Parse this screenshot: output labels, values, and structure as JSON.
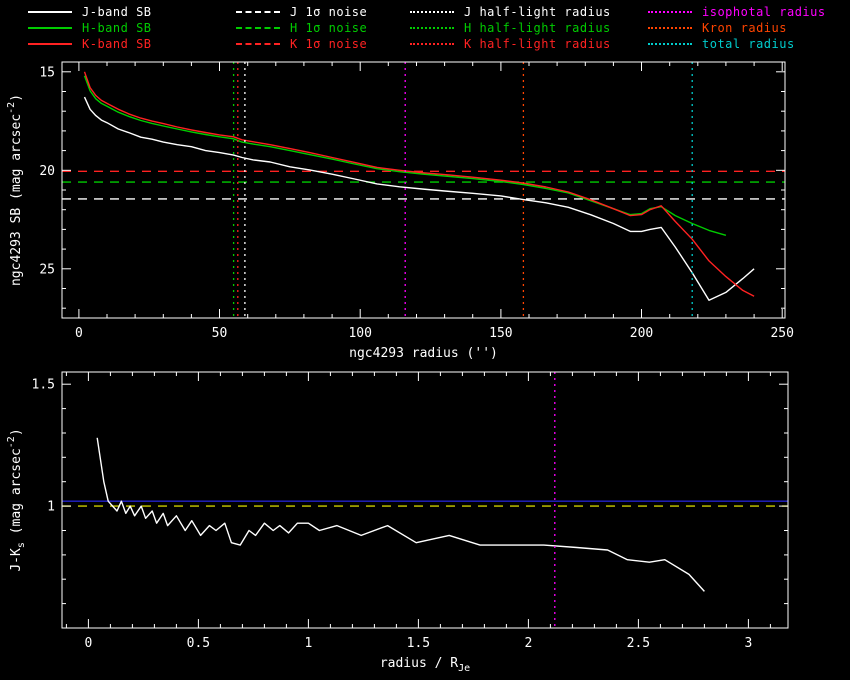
{
  "figure": {
    "background": "#000000",
    "foreground": "#ffffff",
    "galaxy": "ngc4293"
  },
  "legend": {
    "columns": [
      {
        "entries": [
          {
            "label": "J-band SB",
            "color": "#ffffff",
            "style": "solid"
          },
          {
            "label": "H-band SB",
            "color": "#00cc00",
            "style": "solid"
          },
          {
            "label": "K-band SB",
            "color": "#ff2222",
            "style": "solid"
          }
        ]
      },
      {
        "entries": [
          {
            "label": "J 1σ noise",
            "color": "#ffffff",
            "style": "dashed"
          },
          {
            "label": "H 1σ noise",
            "color": "#00cc00",
            "style": "dashed"
          },
          {
            "label": "K 1σ noise",
            "color": "#ff2222",
            "style": "dashed"
          }
        ]
      },
      {
        "entries": [
          {
            "label": "J half-light radius",
            "color": "#ffffff",
            "style": "dotted"
          },
          {
            "label": "H half-light radius",
            "color": "#00cc00",
            "style": "dotted"
          },
          {
            "label": "K half-light radius",
            "color": "#ff2222",
            "style": "dotted"
          }
        ]
      },
      {
        "entries": [
          {
            "label": "isophotal radius",
            "color": "#ff00ff",
            "style": "dotted"
          },
          {
            "label": "Kron radius",
            "color": "#ff4400",
            "style": "dotted"
          },
          {
            "label": "total radius",
            "color": "#00cccc",
            "style": "dotted"
          }
        ]
      }
    ]
  },
  "chart_data": [
    {
      "type": "line",
      "panel": "surface-brightness-profile",
      "xlabel": [
        {
          "t": "ngc4293 radius ('')"
        }
      ],
      "ylabel": [
        {
          "t": "ngc4293 SB (mag arcsec"
        },
        {
          "t": "-2",
          "pos": "sup"
        },
        {
          "t": ")"
        }
      ],
      "xlim": [
        -6,
        251
      ],
      "ylim": [
        14.5,
        27.5
      ],
      "xticks": [
        0,
        50,
        100,
        150,
        200,
        250
      ],
      "xtick_labels": [
        "0",
        "50",
        "100",
        "150",
        "200",
        "250"
      ],
      "xminor": 10,
      "yticks": [
        15,
        20,
        25
      ],
      "ytick_labels": [
        "15",
        "20",
        "25"
      ],
      "yminor": 1,
      "series": [
        {
          "name": "J-band SB",
          "color": "#ffffff",
          "style": "solid",
          "x": [
            2,
            4,
            6,
            8,
            10,
            14,
            18,
            22,
            26,
            30,
            35,
            40,
            45,
            50,
            55,
            58,
            62,
            68,
            75,
            82,
            90,
            98,
            106,
            114,
            122,
            130,
            140,
            150,
            158,
            166,
            174,
            182,
            190,
            196,
            200,
            203,
            207,
            212,
            218,
            224,
            230,
            236,
            240
          ],
          "y": [
            16.28,
            16.9,
            17.22,
            17.45,
            17.58,
            17.9,
            18.1,
            18.32,
            18.42,
            18.57,
            18.7,
            18.8,
            19.0,
            19.1,
            19.23,
            19.35,
            19.47,
            19.58,
            19.82,
            19.98,
            20.2,
            20.44,
            20.69,
            20.84,
            20.95,
            21.05,
            21.17,
            21.3,
            21.49,
            21.65,
            21.88,
            22.26,
            22.7,
            23.1,
            23.1,
            23.0,
            22.9,
            23.9,
            25.2,
            26.6,
            26.2,
            25.5,
            25.0
          ]
        },
        {
          "name": "H-band SB",
          "color": "#00cc00",
          "style": "solid",
          "x": [
            2,
            4,
            6,
            8,
            10,
            14,
            18,
            22,
            26,
            30,
            35,
            40,
            45,
            50,
            55,
            58,
            62,
            68,
            75,
            82,
            90,
            98,
            106,
            114,
            122,
            130,
            140,
            150,
            158,
            166,
            174,
            182,
            190,
            196,
            200,
            203,
            207,
            212,
            218,
            224,
            230
          ],
          "y": [
            15.2,
            15.97,
            16.37,
            16.6,
            16.75,
            17.05,
            17.28,
            17.47,
            17.62,
            17.75,
            17.9,
            18.05,
            18.18,
            18.3,
            18.4,
            18.57,
            18.67,
            18.8,
            19.0,
            19.2,
            19.43,
            19.68,
            19.92,
            20.07,
            20.19,
            20.29,
            20.42,
            20.57,
            20.72,
            20.92,
            21.15,
            21.55,
            21.95,
            22.25,
            22.2,
            21.95,
            21.85,
            22.3,
            22.7,
            23.05,
            23.3
          ]
        },
        {
          "name": "K-band SB",
          "color": "#ff2222",
          "style": "solid",
          "x": [
            2,
            4,
            6,
            8,
            10,
            14,
            18,
            22,
            26,
            30,
            35,
            40,
            45,
            50,
            55,
            58,
            62,
            68,
            75,
            82,
            90,
            98,
            106,
            114,
            122,
            130,
            140,
            150,
            158,
            166,
            174,
            182,
            190,
            196,
            200,
            203,
            207,
            212,
            218,
            224,
            230,
            236,
            240
          ],
          "y": [
            15.0,
            15.8,
            16.2,
            16.45,
            16.6,
            16.9,
            17.15,
            17.35,
            17.5,
            17.63,
            17.8,
            17.95,
            18.08,
            18.2,
            18.3,
            18.45,
            18.55,
            18.7,
            18.9,
            19.1,
            19.35,
            19.6,
            19.85,
            20.0,
            20.12,
            20.22,
            20.35,
            20.5,
            20.65,
            20.85,
            21.1,
            21.5,
            21.95,
            22.3,
            22.25,
            22.0,
            21.8,
            22.6,
            23.5,
            24.6,
            25.4,
            26.1,
            26.4
          ]
        }
      ],
      "hlines": [
        {
          "label": "J 1σ noise",
          "y": 21.45,
          "color": "#ffffff",
          "style": "dashed"
        },
        {
          "label": "H 1σ noise",
          "y": 20.6,
          "color": "#00cc00",
          "style": "dashed"
        },
        {
          "label": "K 1σ noise",
          "y": 20.05,
          "color": "#ff2222",
          "style": "dashed"
        }
      ],
      "vlines": [
        {
          "label": "H half-light radius",
          "x": 55,
          "color": "#00cc00",
          "style": "dotted"
        },
        {
          "label": "K half-light radius",
          "x": 56.5,
          "color": "#ff2222",
          "style": "dotted"
        },
        {
          "label": "J half-light radius",
          "x": 59,
          "color": "#ffffff",
          "style": "dotted"
        },
        {
          "label": "isophotal radius",
          "x": 116,
          "color": "#ff00ff",
          "style": "dotted"
        },
        {
          "label": "Kron radius",
          "x": 158,
          "color": "#ff4400",
          "style": "dotted"
        },
        {
          "label": "total radius",
          "x": 218,
          "color": "#00cccc",
          "style": "dotted"
        }
      ]
    },
    {
      "type": "line",
      "panel": "j-minus-ks-color-profile",
      "xlabel": [
        {
          "t": "radius / R"
        },
        {
          "t": "Je",
          "pos": "sub"
        }
      ],
      "ylabel": [
        {
          "t": "J-K"
        },
        {
          "t": "s",
          "pos": "sub"
        },
        {
          "t": " (mag arcsec"
        },
        {
          "t": "-2",
          "pos": "sup"
        },
        {
          "t": ")"
        }
      ],
      "xlim": [
        -0.12,
        3.18
      ],
      "ylim": [
        1.55,
        0.5
      ],
      "xticks": [
        0,
        0.5,
        1,
        1.5,
        2,
        2.5,
        3
      ],
      "xtick_labels": [
        "0",
        "0.5",
        "1",
        "1.5",
        "2",
        "2.5",
        "3"
      ],
      "xminor": 0.1,
      "yticks": [
        1,
        1.5
      ],
      "ytick_labels": [
        "1",
        "1.5"
      ],
      "yminor": 0.1,
      "series": [
        {
          "name": "J-Ks color",
          "color": "#ffffff",
          "style": "solid",
          "x": [
            0.04,
            0.07,
            0.09,
            0.11,
            0.13,
            0.15,
            0.17,
            0.19,
            0.21,
            0.24,
            0.26,
            0.29,
            0.31,
            0.34,
            0.36,
            0.4,
            0.44,
            0.47,
            0.51,
            0.55,
            0.58,
            0.62,
            0.65,
            0.69,
            0.73,
            0.76,
            0.8,
            0.84,
            0.87,
            0.91,
            0.95,
            1.0,
            1.05,
            1.13,
            1.24,
            1.36,
            1.49,
            1.64,
            1.78,
            1.93,
            2.07,
            2.22,
            2.36,
            2.45,
            2.55,
            2.62,
            2.73,
            2.8
          ],
          "y": [
            1.28,
            1.1,
            1.02,
            1.0,
            0.98,
            1.02,
            0.97,
            1.0,
            0.96,
            1.0,
            0.95,
            0.98,
            0.93,
            0.97,
            0.92,
            0.96,
            0.9,
            0.94,
            0.88,
            0.92,
            0.9,
            0.93,
            0.85,
            0.84,
            0.9,
            0.88,
            0.93,
            0.9,
            0.92,
            0.89,
            0.93,
            0.93,
            0.9,
            0.92,
            0.88,
            0.92,
            0.85,
            0.88,
            0.84,
            0.84,
            0.84,
            0.83,
            0.82,
            0.78,
            0.77,
            0.78,
            0.72,
            0.65
          ]
        }
      ],
      "hlines": [
        {
          "label": "color reference solid",
          "y": 1.02,
          "color": "#2222cc",
          "style": "solid"
        },
        {
          "label": "color reference dashed",
          "y": 1.0,
          "color": "#cccc00",
          "style": "dashed"
        }
      ],
      "vlines": [
        {
          "label": "isophotal radius",
          "x": 2.12,
          "color": "#ff00ff",
          "style": "dotted"
        }
      ]
    }
  ]
}
